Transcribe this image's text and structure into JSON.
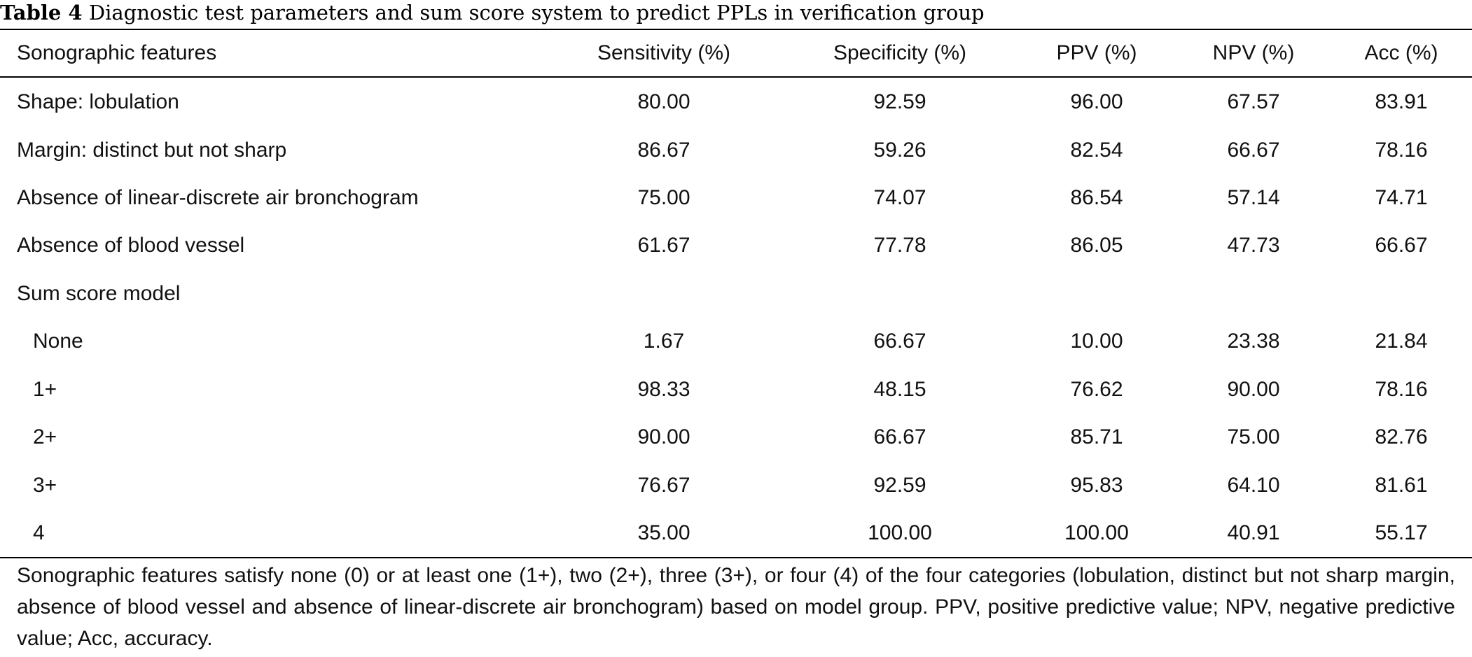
{
  "caption": {
    "label": "Table 4",
    "text": "Diagnostic test parameters and sum score system to predict PPLs in verification group"
  },
  "headers": [
    "Sonographic features",
    "Sensitivity (%)",
    "Specificity (%)",
    "PPV (%)",
    "NPV (%)",
    "Acc (%)"
  ],
  "rows": [
    {
      "name": "Shape: lobulation",
      "values": [
        "80.00",
        "92.59",
        "96.00",
        "67.57",
        "83.91"
      ]
    },
    {
      "name": "Margin: distinct but not sharp",
      "values": [
        "86.67",
        "59.26",
        "82.54",
        "66.67",
        "78.16"
      ]
    },
    {
      "name": "Absence of linear-discrete air bronchogram",
      "values": [
        "75.00",
        "74.07",
        "86.54",
        "57.14",
        "74.71"
      ]
    },
    {
      "name": "Absence of blood vessel",
      "values": [
        "61.67",
        "77.78",
        "86.05",
        "47.73",
        "66.67"
      ]
    },
    {
      "name": "Sum score model",
      "values": [
        "",
        "",
        "",
        "",
        ""
      ]
    },
    {
      "name": "None",
      "values": [
        "1.67",
        "66.67",
        "10.00",
        "23.38",
        "21.84"
      ]
    },
    {
      "name": "1+",
      "values": [
        "98.33",
        "48.15",
        "76.62",
        "90.00",
        "78.16"
      ]
    },
    {
      "name": "2+",
      "values": [
        "90.00",
        "66.67",
        "85.71",
        "75.00",
        "82.76"
      ]
    },
    {
      "name": "3+",
      "values": [
        "76.67",
        "92.59",
        "95.83",
        "64.10",
        "81.61"
      ]
    },
    {
      "name": "4",
      "values": [
        "35.00",
        "100.00",
        "100.00",
        "40.91",
        "55.17"
      ]
    }
  ],
  "footnote": "Sonographic features satisfy none (0) or at least one (1+), two (2+), three (3+), or four (4) of the four categories (lobulation, distinct but not sharp margin, absence of blood vessel and absence of linear-discrete air bronchogram) based on model group. PPV, positive predictive value; NPV, negative predictive value; Acc, accuracy."
}
